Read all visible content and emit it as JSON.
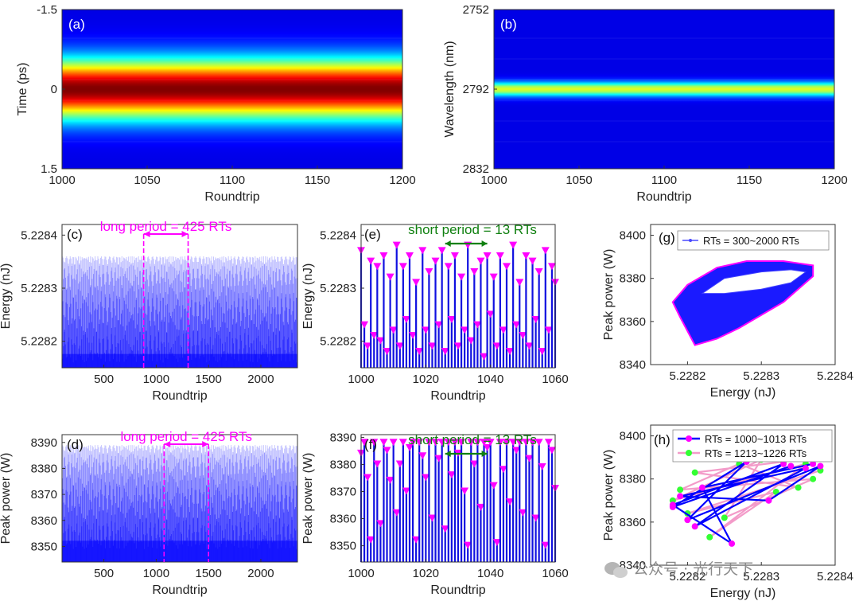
{
  "watermark": "公众号 · 光行天下",
  "colors": {
    "blue": "#0000ff",
    "magenta": "#ff00ff",
    "green": "#108010",
    "lime": "#33ff33",
    "pink": "#f39bc9"
  },
  "chart_data": [
    {
      "id": "a",
      "panel_label": "(a)",
      "type": "heatmap",
      "xlabel": "Roundtrip",
      "ylabel": "Time (ps)",
      "xlim": [
        1000,
        1200
      ],
      "ylim": [
        -1.5,
        1.5
      ],
      "xticks": [
        "1000",
        "1050",
        "1100",
        "1150",
        "1200"
      ],
      "yticks": [
        "-1.5",
        "0",
        "1.5"
      ],
      "center": 0,
      "width": 0.55,
      "peak": 1.0
    },
    {
      "id": "b",
      "panel_label": "(b)",
      "type": "heatmap",
      "xlabel": "Roundtrip",
      "ylabel": "Wavelength (nm)",
      "xlim": [
        1000,
        1200
      ],
      "ylim": [
        2752,
        2832
      ],
      "xticks": [
        "1000",
        "1050",
        "1100",
        "1150",
        "1200"
      ],
      "yticks": [
        "2752",
        "2792",
        "2832"
      ],
      "center": 2792,
      "width": 3.5,
      "peak": 0.6
    },
    {
      "id": "c",
      "panel_label": "(c)",
      "type": "bar",
      "xlabel": "Roundtrip",
      "ylabel": "Energy (nJ)",
      "xlim": [
        100,
        2350
      ],
      "ylim": [
        5.22815,
        5.22842
      ],
      "xticks": [
        500,
        1000,
        1500,
        2000
      ],
      "yticks": [
        5.2282,
        5.2283,
        5.2284
      ],
      "ytick_labels": [
        "5.2282",
        "5.2283",
        "5.2284"
      ],
      "annotation": "long period = 425 RTs",
      "period_markers": [
        880,
        1305
      ],
      "value_range": [
        5.22816,
        5.22836
      ],
      "short_period": 13,
      "long_period": 425
    },
    {
      "id": "d",
      "panel_label": "(d)",
      "type": "bar",
      "xlabel": "Roundtrip",
      "ylabel": "Peak power (W)",
      "xlim": [
        100,
        2350
      ],
      "ylim": [
        8344,
        8393
      ],
      "xticks": [
        500,
        1000,
        1500,
        2000
      ],
      "yticks": [
        8350,
        8360,
        8370,
        8380,
        8390
      ],
      "ytick_labels": [
        "8350",
        "8360",
        "8370",
        "8380",
        "8390"
      ],
      "annotation": "long period = 425 RTs",
      "period_markers": [
        1075,
        1500
      ],
      "value_range": [
        8349,
        8389
      ],
      "short_period": 13,
      "long_period": 425
    },
    {
      "id": "e",
      "panel_label": "(e)",
      "type": "bar",
      "xlabel": "Roundtrip",
      "ylabel": "Energy (nJ)",
      "xlim": [
        1000,
        1060
      ],
      "ylim": [
        5.22815,
        5.22842
      ],
      "xticks": [
        1000,
        1020,
        1040,
        1060
      ],
      "yticks": [
        5.2282,
        5.2283,
        5.2284
      ],
      "ytick_labels": [
        "5.2282",
        "5.2283",
        "5.2284"
      ],
      "annotation": "short period = 13 RTs",
      "period_span": [
        1026,
        1039
      ],
      "x": [
        1000,
        1001,
        1002,
        1003,
        1004,
        1005,
        1006,
        1007,
        1008,
        1009,
        1010,
        1011,
        1012,
        1013,
        1014,
        1015,
        1016,
        1017,
        1018,
        1019,
        1020,
        1021,
        1022,
        1023,
        1024,
        1025,
        1026,
        1027,
        1028,
        1029,
        1030,
        1031,
        1032,
        1033,
        1034,
        1035,
        1036,
        1037,
        1038,
        1039,
        1040,
        1041,
        1042,
        1043,
        1044,
        1045,
        1046,
        1047,
        1048,
        1049,
        1050,
        1051,
        1052,
        1053,
        1054,
        1055,
        1056,
        1057,
        1058,
        1059,
        1060
      ],
      "values": [
        5.22837,
        5.22823,
        5.22819,
        5.22835,
        5.22821,
        5.22834,
        5.2282,
        5.22836,
        5.22818,
        5.22832,
        5.22822,
        5.22838,
        5.22819,
        5.22834,
        5.22824,
        5.22836,
        5.22821,
        5.22831,
        5.22818,
        5.22837,
        5.22822,
        5.22833,
        5.22819,
        5.22835,
        5.22823,
        5.22837,
        5.22818,
        5.22834,
        5.22824,
        5.22836,
        5.22819,
        5.22832,
        5.22822,
        5.22838,
        5.2282,
        5.22833,
        5.22823,
        5.22835,
        5.22817,
        5.22836,
        5.22825,
        5.22832,
        5.22819,
        5.22836,
        5.22822,
        5.22834,
        5.22818,
        5.22838,
        5.22823,
        5.22831,
        5.22821,
        5.22836,
        5.22819,
        5.22835,
        5.22824,
        5.22833,
        5.22818,
        5.22837,
        5.22822,
        5.22834,
        5.22831
      ]
    },
    {
      "id": "f",
      "panel_label": "(f)",
      "type": "bar",
      "xlabel": "Roundtrip",
      "ylabel": "Peak power (W)",
      "xlim": [
        1000,
        1060
      ],
      "ylim": [
        8344,
        8391
      ],
      "xticks": [
        1000,
        1020,
        1040,
        1060
      ],
      "yticks": [
        8350,
        8360,
        8370,
        8380,
        8390
      ],
      "ytick_labels": [
        "8350",
        "8360",
        "8370",
        "8380",
        "8390"
      ],
      "annotation": "short period = 13 RTs",
      "period_span": [
        1026,
        1039
      ],
      "x": [
        1000,
        1001,
        1002,
        1003,
        1004,
        1005,
        1006,
        1007,
        1008,
        1009,
        1010,
        1011,
        1012,
        1013,
        1014,
        1015,
        1016,
        1017,
        1018,
        1019,
        1020,
        1021,
        1022,
        1023,
        1024,
        1025,
        1026,
        1027,
        1028,
        1029,
        1030,
        1031,
        1032,
        1033,
        1034,
        1035,
        1036,
        1037,
        1038,
        1039,
        1040,
        1041,
        1042,
        1043,
        1044,
        1045,
        1046,
        1047,
        1048,
        1049,
        1050,
        1051,
        1052,
        1053,
        1054,
        1055,
        1056,
        1057,
        1058,
        1059,
        1060
      ],
      "values": [
        8384,
        8388,
        8375,
        8352,
        8388,
        8380,
        8358,
        8388,
        8385,
        8374,
        8388,
        8362,
        8380,
        8388,
        8370,
        8386,
        8388,
        8352,
        8388,
        8383,
        8375,
        8388,
        8360,
        8388,
        8382,
        8388,
        8356,
        8388,
        8376,
        8388,
        8384,
        8388,
        8370,
        8350,
        8388,
        8380,
        8388,
        8364,
        8388,
        8386,
        8388,
        8372,
        8351,
        8388,
        8378,
        8388,
        8366,
        8388,
        8385,
        8388,
        8362,
        8388,
        8382,
        8388,
        8360,
        8388,
        8379,
        8350,
        8388,
        8385,
        8371
      ]
    },
    {
      "id": "g",
      "panel_label": "(g)",
      "type": "scatter",
      "xlabel": "Energy (nJ)",
      "ylabel": "Peak power (W)",
      "xlim": [
        5.22815,
        5.2284
      ],
      "ylim": [
        8340,
        8405
      ],
      "xticks": [
        5.2282,
        5.2283,
        5.2284
      ],
      "xtick_labels": [
        "5.2282",
        "5.2283",
        "5.2284"
      ],
      "yticks": [
        8340,
        8360,
        8380,
        8400
      ],
      "ytick_labels": [
        "8340",
        "8360",
        "8380",
        "8400"
      ],
      "legend": [
        "RTs = 300~2000 RTs"
      ],
      "legend_position": "top",
      "outer_loop": [
        [
          5.22821,
          8349
        ],
        [
          5.22824,
          8352
        ],
        [
          5.22827,
          8357
        ],
        [
          5.2283,
          8363
        ],
        [
          5.22833,
          8369
        ],
        [
          5.22835,
          8375
        ],
        [
          5.22837,
          8381
        ],
        [
          5.22837,
          8386
        ],
        [
          5.22833,
          8388
        ],
        [
          5.22828,
          8388
        ],
        [
          5.22824,
          8385
        ],
        [
          5.2282,
          8377
        ],
        [
          5.22818,
          8369
        ],
        [
          5.22819,
          8362
        ],
        [
          5.22821,
          8349
        ]
      ],
      "inner_loop": [
        [
          5.22822,
          8373
        ],
        [
          5.22825,
          8380
        ],
        [
          5.2283,
          8383
        ],
        [
          5.22834,
          8384
        ],
        [
          5.22836,
          8383
        ],
        [
          5.22834,
          8378
        ],
        [
          5.2283,
          8375
        ],
        [
          5.22825,
          8373
        ],
        [
          5.22822,
          8373
        ]
      ]
    },
    {
      "id": "h",
      "panel_label": "(h)",
      "type": "line",
      "xlabel": "Energy (nJ)",
      "ylabel": "Peak power (W)",
      "xlim": [
        5.22815,
        5.2284
      ],
      "ylim": [
        8340,
        8405
      ],
      "xticks": [
        5.2282,
        5.2283,
        5.2284
      ],
      "xtick_labels": [
        "5.2282",
        "5.2283",
        "5.2284"
      ],
      "yticks": [
        8340,
        8360,
        8380,
        8400
      ],
      "ytick_labels": [
        "8340",
        "8360",
        "8380",
        "8400"
      ],
      "legend_position": "top-right",
      "series": [
        {
          "name": "RTs = 1000~1013 RTs",
          "color": "#0000ff",
          "marker_color": "#ff00ff",
          "points": [
            [
              5.22837,
              8387
            ],
            [
              5.22822,
              8376
            ],
            [
              5.22826,
              8350
            ],
            [
              5.22818,
              8368
            ],
            [
              5.22833,
              8387
            ],
            [
              5.22821,
              8358
            ],
            [
              5.22836,
              8385
            ],
            [
              5.22819,
              8372
            ],
            [
              5.22831,
              8370
            ],
            [
              5.22838,
              8386
            ],
            [
              5.2282,
              8361
            ],
            [
              5.22828,
              8388
            ],
            [
              5.22818,
              8367
            ],
            [
              5.22834,
              8386
            ]
          ]
        },
        {
          "name": "RTs = 1213~1226 RTs",
          "color": "#f39bc9",
          "marker_color": "#33ff33",
          "points": [
            [
              5.22838,
              8384
            ],
            [
              5.2282,
              8364
            ],
            [
              5.22832,
              8374
            ],
            [
              5.22823,
              8353
            ],
            [
              5.22836,
              8387
            ],
            [
              5.22818,
              8370
            ],
            [
              5.2283,
              8389
            ],
            [
              5.22825,
              8362
            ],
            [
              5.22837,
              8380
            ],
            [
              5.22819,
              8375
            ],
            [
              5.22827,
              8387
            ],
            [
              5.22835,
              8376
            ],
            [
              5.22821,
              8383
            ],
            [
              5.22833,
              8388
            ]
          ]
        }
      ]
    }
  ]
}
